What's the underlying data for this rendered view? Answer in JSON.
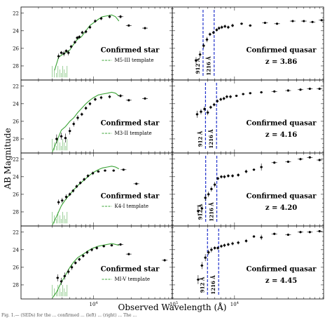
{
  "figure": {
    "ylabel": "AB Magnitude",
    "xlabel": "Observed Wavelength (Å)",
    "caption": "Fig. 1.— (SEDs) for the ... confirmed ... (left) ... (right) ... The ..."
  },
  "chart_data": [
    {
      "type": "scatter",
      "panel": "star-1",
      "log_x": true,
      "xlim": [
        1200,
        100000
      ],
      "ylim": [
        29.6,
        21.3
      ],
      "invert_y": true,
      "yticks": [
        22,
        24,
        26,
        28
      ],
      "xtick_labels": [
        "10^4"
      ],
      "title": "Confirmed star",
      "legend": "M5-III template",
      "template": {
        "x": [
          3200,
          3600,
          4200,
          5000,
          5500,
          6200,
          7000,
          8000,
          9000,
          10000,
          11500,
          13000,
          15000,
          17000,
          19000,
          21000
        ],
        "y": [
          28.5,
          27.0,
          26.6,
          26.2,
          25.6,
          25.0,
          24.7,
          24.0,
          23.4,
          23.1,
          22.7,
          22.4,
          22.3,
          22.2,
          22.4,
          22.9
        ]
      },
      "points": {
        "x": [
          3600,
          3900,
          4200,
          4500,
          4800,
          5200,
          5800,
          6200,
          6600,
          7200,
          8000,
          9000,
          10500,
          12500,
          16000,
          22000,
          28000,
          45000
        ],
        "y": [
          26.9,
          26.5,
          26.6,
          26.3,
          26.5,
          25.8,
          25.3,
          24.8,
          24.7,
          24.2,
          24.1,
          23.6,
          22.9,
          22.6,
          22.4,
          22.4,
          23.4,
          23.7
        ],
        "err": [
          0.3,
          0.2,
          0.3,
          0.2,
          0.3,
          0.2,
          0.2,
          0.2,
          0.2,
          0.2,
          0.2,
          0.2,
          0.2,
          0.2,
          0.2,
          0.2,
          0.1,
          0.1
        ]
      }
    },
    {
      "type": "scatter",
      "panel": "quasar-1",
      "log_x": true,
      "xlim": [
        2000,
        100000
      ],
      "ylim": [
        29.6,
        21.3
      ],
      "invert_y": true,
      "yticks": [],
      "xtick_labels": [
        "10^4"
      ],
      "title": "Confirmed quasar",
      "redshift": "z = 3.86",
      "lyman_lines": [
        "912 Å",
        "1216 Å"
      ],
      "lyman_x": [
        4430,
        5900
      ],
      "points": {
        "x": [
          3700,
          4100,
          4500,
          4900,
          5300,
          5800,
          6300,
          6700,
          7200,
          7800,
          8500,
          9500,
          12000,
          15000,
          22000,
          30000,
          45000,
          60000,
          75000,
          95000
        ],
        "y": [
          27.4,
          26.7,
          25.7,
          25.0,
          24.4,
          24.2,
          23.9,
          23.7,
          23.6,
          23.5,
          23.6,
          23.4,
          23.2,
          23.4,
          23.1,
          23.2,
          22.9,
          22.9,
          23.0,
          22.8
        ],
        "err": [
          0.4,
          0.4,
          0.3,
          0.3,
          0.2,
          0.2,
          0.2,
          0.2,
          0.2,
          0.2,
          0.2,
          0.2,
          0.1,
          0.1,
          0.1,
          0.1,
          0.1,
          0.1,
          0.1,
          0.1
        ]
      }
    },
    {
      "type": "scatter",
      "panel": "star-2",
      "log_x": true,
      "xlim": [
        1200,
        100000
      ],
      "ylim": [
        29.6,
        21.3
      ],
      "invert_y": true,
      "yticks": [
        22,
        24,
        26,
        28
      ],
      "xtick_labels": [
        "10^4"
      ],
      "title": "Confirmed star",
      "legend": "M3-II template",
      "template": {
        "x": [
          3000,
          3400,
          3900,
          4400,
          5000,
          5600,
          6300,
          7100,
          8000,
          9000,
          10000,
          11500,
          13000,
          15000,
          17000,
          19000,
          21000
        ],
        "y": [
          29.5,
          28.3,
          27.0,
          26.6,
          26.0,
          25.6,
          25.0,
          24.5,
          24.0,
          23.6,
          23.3,
          23.0,
          22.9,
          22.8,
          22.7,
          22.8,
          23.1
        ]
      },
      "points": {
        "x": [
          3400,
          3900,
          4400,
          5000,
          5600,
          6300,
          7100,
          8000,
          9000,
          10500,
          12500,
          16000,
          22000,
          28000,
          45000
        ],
        "y": [
          28.0,
          27.7,
          27.9,
          27.1,
          26.3,
          25.6,
          25.2,
          24.5,
          24.0,
          23.5,
          23.3,
          23.2,
          23.1,
          23.6,
          23.4
        ],
        "err": [
          0.5,
          0.4,
          0.5,
          0.4,
          0.3,
          0.3,
          0.2,
          0.2,
          0.2,
          0.2,
          0.2,
          0.2,
          0.2,
          0.1,
          0.1
        ]
      }
    },
    {
      "type": "scatter",
      "panel": "quasar-2",
      "log_x": true,
      "xlim": [
        2000,
        100000
      ],
      "ylim": [
        29.6,
        21.3
      ],
      "invert_y": true,
      "yticks": [],
      "xtick_labels": [
        "10^4"
      ],
      "title": "Confirmed quasar",
      "redshift": "z = 4.16",
      "lyman_lines": [
        "912 Å",
        "1216 Å"
      ],
      "lyman_x": [
        4720,
        6280
      ],
      "points": {
        "x": [
          3800,
          4200,
          4600,
          5000,
          5400,
          5900,
          6400,
          7000,
          7600,
          8200,
          9000,
          10500,
          12500,
          15000,
          20000,
          28000,
          40000,
          55000,
          70000,
          90000
        ],
        "y": [
          25.2,
          24.9,
          24.6,
          25.0,
          24.4,
          24.1,
          23.7,
          23.5,
          23.4,
          23.2,
          23.2,
          23.1,
          22.9,
          22.8,
          22.7,
          22.6,
          22.5,
          22.4,
          22.3,
          22.3
        ],
        "err": [
          0.4,
          0.3,
          0.3,
          0.3,
          0.2,
          0.2,
          0.2,
          0.2,
          0.2,
          0.2,
          0.2,
          0.1,
          0.1,
          0.1,
          0.1,
          0.1,
          0.1,
          0.1,
          0.1,
          0.1
        ]
      }
    },
    {
      "type": "scatter",
      "panel": "star-3",
      "log_x": true,
      "xlim": [
        1200,
        100000
      ],
      "ylim": [
        29.6,
        21.3
      ],
      "invert_y": true,
      "yticks": [
        22,
        24,
        26,
        28
      ],
      "xtick_labels": [
        "10^4"
      ],
      "title": "Confirmed star",
      "legend": "K4-I template",
      "template": {
        "x": [
          3000,
          3400,
          3900,
          4400,
          5000,
          5600,
          6300,
          7100,
          8000,
          9000,
          10000,
          11500,
          13000,
          15000,
          17000,
          19000,
          21000
        ],
        "y": [
          29.5,
          28.5,
          27.3,
          26.6,
          26.0,
          25.5,
          25.0,
          24.6,
          24.2,
          23.8,
          23.5,
          23.2,
          23.0,
          22.9,
          22.8,
          22.9,
          23.1
        ]
      },
      "points": {
        "x": [
          3600,
          4000,
          4500,
          5000,
          5500,
          6100,
          6800,
          7600,
          8500,
          9800,
          11500,
          14000,
          18000,
          24000,
          35000
        ],
        "y": [
          26.9,
          26.7,
          26.3,
          26.0,
          25.6,
          25.1,
          24.7,
          24.3,
          23.9,
          23.6,
          23.4,
          23.3,
          23.3,
          23.2,
          24.8
        ],
        "err": [
          0.3,
          0.3,
          0.3,
          0.2,
          0.2,
          0.2,
          0.2,
          0.2,
          0.2,
          0.2,
          0.1,
          0.1,
          0.1,
          0.1,
          0.1
        ]
      }
    },
    {
      "type": "scatter",
      "panel": "quasar-3",
      "log_x": true,
      "xlim": [
        2000,
        100000
      ],
      "ylim": [
        29.6,
        21.3
      ],
      "invert_y": true,
      "yticks": [],
      "xtick_labels": [
        "10^4"
      ],
      "title": "Confirmed quasar",
      "redshift": "z = 4.20",
      "lyman_lines": [
        "912 Å",
        "1216 Å"
      ],
      "lyman_x": [
        4740,
        6320
      ],
      "points": {
        "x": [
          3900,
          4300,
          4700,
          5100,
          5500,
          6000,
          6500,
          7100,
          7700,
          8500,
          9500,
          11000,
          13500,
          16500,
          20000,
          28000,
          40000,
          55000,
          70000,
          90000
        ],
        "y": [
          27.9,
          27.6,
          26.4,
          26.0,
          25.4,
          24.9,
          24.2,
          24.0,
          24.0,
          23.9,
          23.9,
          23.8,
          23.4,
          23.2,
          22.9,
          22.4,
          22.3,
          22.0,
          21.8,
          22.1
        ],
        "err": [
          0.5,
          0.4,
          0.4,
          0.3,
          0.3,
          0.3,
          0.2,
          0.2,
          0.2,
          0.2,
          0.2,
          0.2,
          0.2,
          0.1,
          0.4,
          0.1,
          0.1,
          0.1,
          0.1,
          0.1
        ]
      }
    },
    {
      "type": "scatter",
      "panel": "star-4",
      "log_x": true,
      "xlim": [
        1200,
        100000
      ],
      "ylim": [
        29.6,
        21.3
      ],
      "invert_y": true,
      "yticks": [
        22,
        24,
        26,
        28
      ],
      "xtick_labels": [
        "10^4"
      ],
      "title": "Confirmed star",
      "legend": "MI-V template",
      "template": {
        "x": [
          3000,
          3400,
          3900,
          4400,
          5000,
          5600,
          6300,
          7100,
          8000,
          9000,
          10000,
          11500,
          13000,
          15000,
          17000,
          19000,
          21000
        ],
        "y": [
          29.5,
          28.8,
          27.7,
          26.9,
          26.0,
          25.4,
          24.9,
          24.6,
          24.3,
          24.0,
          23.8,
          23.6,
          23.5,
          23.4,
          23.3,
          23.4,
          23.5
        ]
      },
      "points": {
        "x": [
          3500,
          3900,
          4300,
          4800,
          5300,
          5900,
          6600,
          7400,
          8300,
          9500,
          11000,
          13500,
          17000,
          22000,
          28000,
          80000
        ],
        "y": [
          27.2,
          27.6,
          27.0,
          26.5,
          26.0,
          25.5,
          25.1,
          24.7,
          24.3,
          24.0,
          23.8,
          23.6,
          23.5,
          23.4,
          24.5,
          25.2
        ],
        "err": [
          0.4,
          0.4,
          0.4,
          0.3,
          0.3,
          0.2,
          0.2,
          0.2,
          0.2,
          0.2,
          0.2,
          0.1,
          0.1,
          0.1,
          0.1,
          0.1
        ]
      }
    },
    {
      "type": "scatter",
      "panel": "quasar-4",
      "log_x": true,
      "xlim": [
        2000,
        100000
      ],
      "ylim": [
        29.6,
        21.3
      ],
      "invert_y": true,
      "yticks": [],
      "xtick_labels": [
        "10^4"
      ],
      "title": "Confirmed quasar",
      "redshift": "z = 4.45",
      "lyman_lines": [
        "912 Å",
        "1216 Å"
      ],
      "lyman_x": [
        4970,
        6630
      ],
      "points": {
        "x": [
          3900,
          4300,
          4700,
          5100,
          5500,
          6000,
          6500,
          7100,
          7700,
          8500,
          9500,
          11000,
          13500,
          16500,
          20000,
          28000,
          40000,
          55000,
          70000,
          90000
        ],
        "y": [
          27.4,
          25.8,
          24.9,
          24.3,
          24.0,
          23.8,
          23.8,
          23.6,
          23.5,
          23.4,
          23.3,
          23.2,
          23.0,
          22.5,
          22.6,
          22.2,
          22.3,
          22.0,
          22.0,
          21.9
        ],
        "err": [
          0.5,
          0.4,
          0.4,
          0.3,
          0.3,
          0.2,
          0.2,
          0.2,
          0.2,
          0.2,
          0.2,
          0.2,
          0.2,
          0.1,
          0.3,
          0.1,
          0.1,
          0.1,
          0.1,
          0.1
        ]
      }
    }
  ],
  "colors": {
    "template_line": "#3aa335",
    "lyman_line": "#2233cc",
    "points": "#000000",
    "axis": "#000000"
  }
}
